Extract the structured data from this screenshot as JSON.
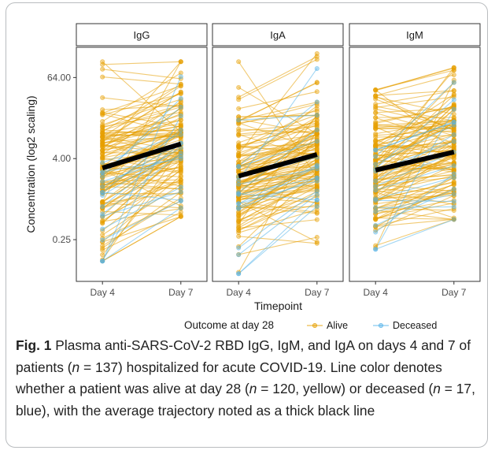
{
  "chart_data": {
    "type": "line",
    "panels": [
      "IgG",
      "IgA",
      "IgM"
    ],
    "categories": [
      "Day 4",
      "Day 7"
    ],
    "xlabel": "Timepoint",
    "ylabel": "Concentration (log2 scaling)",
    "yscale": "log2",
    "ylim": [
      0.06,
      180
    ],
    "yticks": [
      {
        "label": "0.25",
        "value": 0.25
      },
      {
        "label": "4.00",
        "value": 4
      },
      {
        "label": "64.00",
        "value": 64
      }
    ],
    "legend": {
      "title": "Outcome at day 28",
      "position": "bottom",
      "entries": [
        "Alive",
        "Deceased"
      ]
    },
    "colors": {
      "Alive": "#e69f00",
      "Deceased": "#56b4e9",
      "mean": "#000000",
      "panel_bg": "#ffffff",
      "strip_bg": "#ffffff"
    },
    "group_sizes": {
      "Alive": 120,
      "Deceased": 17
    },
    "mean_trajectory": [
      {
        "panel": "IgG",
        "values": [
          2.9,
          6.6
        ]
      },
      {
        "panel": "IgA",
        "values": [
          2.2,
          4.6
        ]
      },
      {
        "panel": "IgM",
        "values": [
          2.7,
          5.0
        ]
      }
    ],
    "extremes": [
      {
        "panel": "IgG",
        "day4": {
          "min": 0.12,
          "max": 110
        },
        "day7": {
          "min": 0.55,
          "max": 110
        }
      },
      {
        "panel": "IgA",
        "day4": {
          "min": 0.078,
          "max": 110
        },
        "day7": {
          "min": 0.22,
          "max": 145
        }
      },
      {
        "panel": "IgM",
        "day4": {
          "min": 0.18,
          "max": 42
        },
        "day7": {
          "min": 0.5,
          "max": 90
        }
      }
    ]
  },
  "caption": {
    "label": "Fig. 1",
    "segments": [
      "Plasma anti-SARS-CoV-2 RBD IgG, IgM, and IgA on days 4 and 7 of patients (",
      "n",
      " = 137) hospitalized for acute COVID-19. Line color denotes whether a patient was alive at day 28 (",
      "n",
      " = 120, yellow) or deceased (",
      "n",
      " = 17, blue), with the average trajectory noted as a thick black line"
    ]
  }
}
